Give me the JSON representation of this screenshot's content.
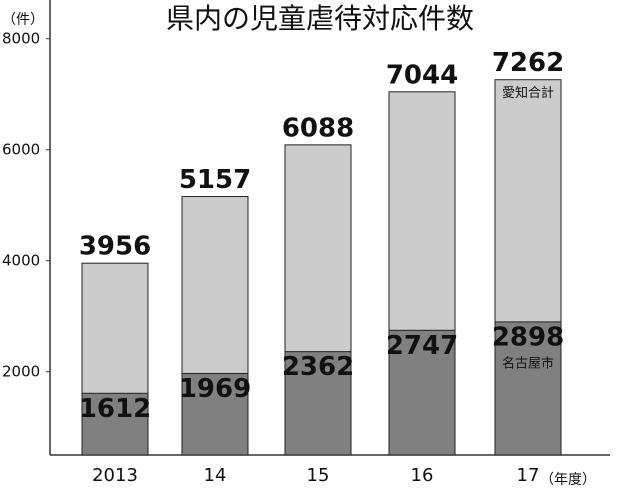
{
  "chart_data": {
    "type": "bar",
    "title": "県内の児童虐待対応件数",
    "y_axis_label": "（件）",
    "x_axis_label": "（年度）",
    "categories": [
      "2013",
      "14",
      "15",
      "16",
      "17"
    ],
    "series": [
      {
        "name": "愛知合計",
        "color": "#cccccc",
        "values": [
          3956,
          5157,
          6088,
          7044,
          7262
        ]
      },
      {
        "name": "名古屋市",
        "color": "#808080",
        "values": [
          1612,
          1969,
          2362,
          2747,
          2898
        ]
      }
    ],
    "overlap": true,
    "ylim": [
      500,
      8500
    ],
    "yticks": [
      2000,
      4000,
      6000,
      8000
    ],
    "grid": false
  }
}
